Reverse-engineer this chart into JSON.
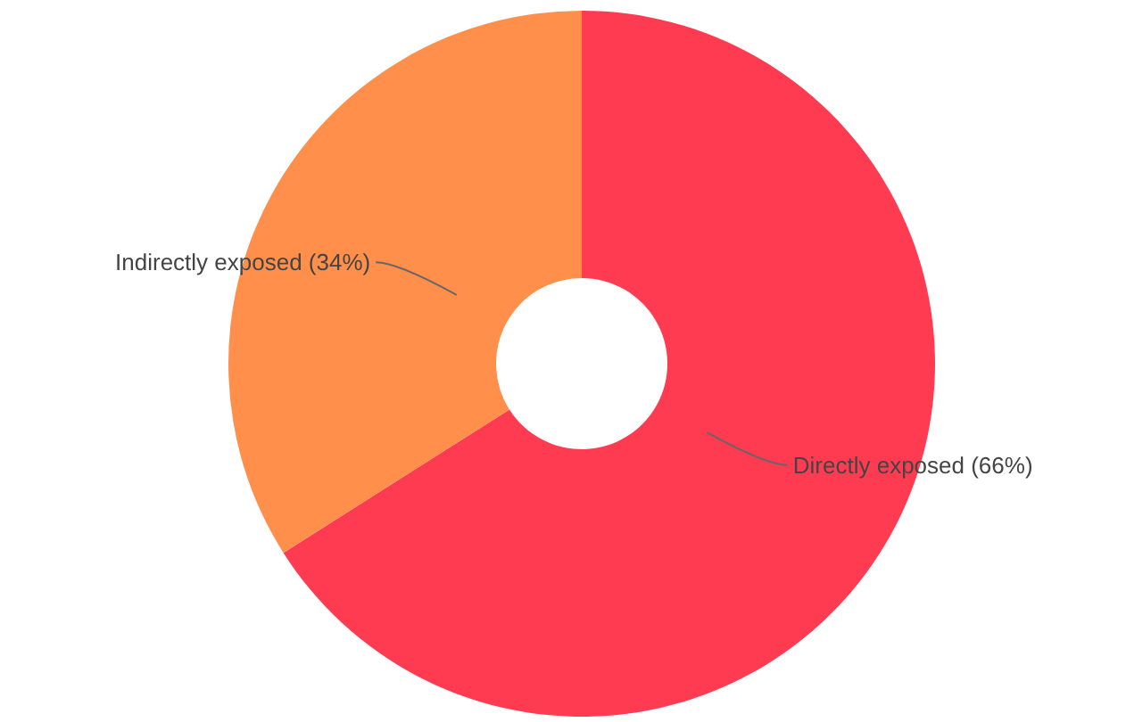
{
  "chart_data": {
    "type": "donut",
    "categories": [
      "Directly exposed",
      "Indirectly exposed"
    ],
    "values": [
      66,
      34
    ],
    "value_labels": [
      "(66%)",
      "(34%)"
    ],
    "colors": [
      "#ff3b52",
      "#ff8f4a"
    ]
  }
}
